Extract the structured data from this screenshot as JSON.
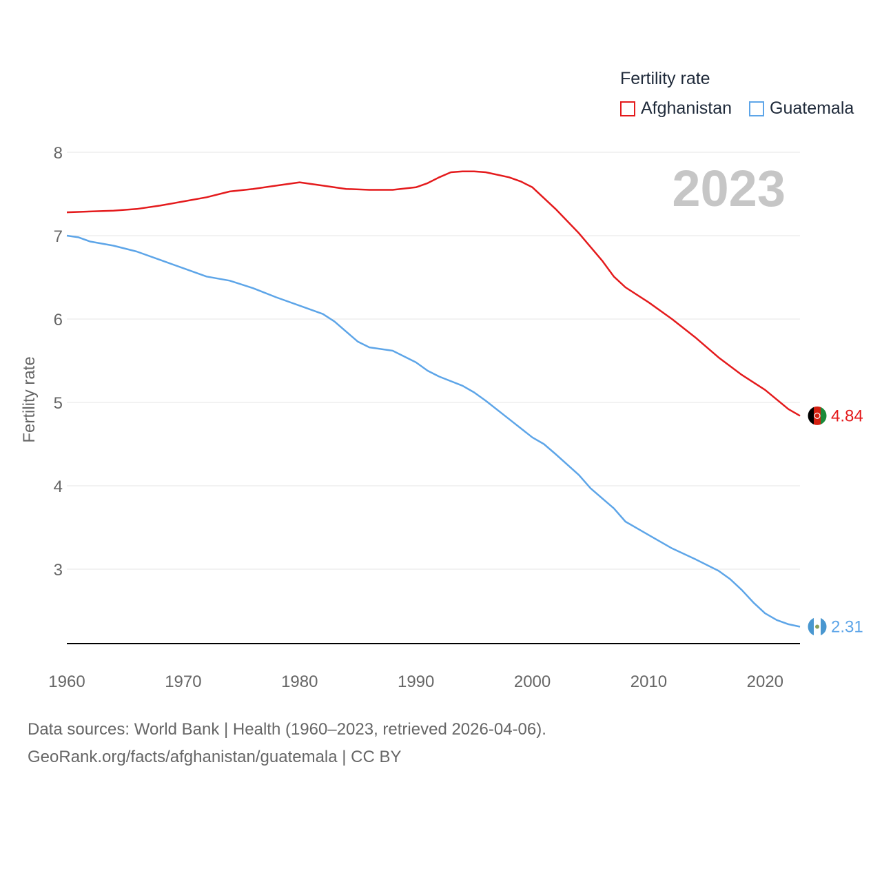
{
  "legend": {
    "title": "Fertility rate",
    "items": [
      {
        "label": "Afghanistan",
        "color": "#e41a1c"
      },
      {
        "label": "Guatemala",
        "color": "#5da5e8"
      }
    ]
  },
  "year_watermark": "2023",
  "footer": {
    "line1": "Data sources: World Bank | Health (1960–2023, retrieved 2026-04-06).",
    "line2": "GeoRank.org/facts/afghanistan/guatemala | CC BY"
  },
  "chart_data": {
    "type": "line",
    "title": "Fertility rate",
    "xlabel": "",
    "ylabel": "Fertility rate",
    "xlim": [
      1960,
      2023
    ],
    "ylim": [
      2.1,
      8.2
    ],
    "xticks": [
      1960,
      1970,
      1980,
      1990,
      2000,
      2010,
      2020
    ],
    "yticks": [
      3,
      4,
      5,
      6,
      7,
      8
    ],
    "grid": true,
    "legend_position": "top-right",
    "series": [
      {
        "name": "Afghanistan",
        "color": "#e41a1c",
        "end_label": "4.84",
        "points": [
          [
            1960,
            7.28
          ],
          [
            1962,
            7.29
          ],
          [
            1964,
            7.3
          ],
          [
            1966,
            7.32
          ],
          [
            1968,
            7.36
          ],
          [
            1970,
            7.41
          ],
          [
            1972,
            7.46
          ],
          [
            1974,
            7.53
          ],
          [
            1976,
            7.56
          ],
          [
            1978,
            7.6
          ],
          [
            1980,
            7.64
          ],
          [
            1982,
            7.6
          ],
          [
            1984,
            7.56
          ],
          [
            1986,
            7.55
          ],
          [
            1988,
            7.55
          ],
          [
            1990,
            7.58
          ],
          [
            1991,
            7.63
          ],
          [
            1992,
            7.7
          ],
          [
            1993,
            7.76
          ],
          [
            1994,
            7.77
          ],
          [
            1995,
            7.77
          ],
          [
            1996,
            7.76
          ],
          [
            1998,
            7.7
          ],
          [
            1999,
            7.65
          ],
          [
            2000,
            7.58
          ],
          [
            2002,
            7.32
          ],
          [
            2004,
            7.03
          ],
          [
            2006,
            6.7
          ],
          [
            2007,
            6.51
          ],
          [
            2008,
            6.38
          ],
          [
            2010,
            6.2
          ],
          [
            2012,
            6.0
          ],
          [
            2014,
            5.78
          ],
          [
            2016,
            5.54
          ],
          [
            2018,
            5.33
          ],
          [
            2020,
            5.15
          ],
          [
            2022,
            4.92
          ],
          [
            2023,
            4.84
          ]
        ]
      },
      {
        "name": "Guatemala",
        "color": "#5da5e8",
        "end_label": "2.31",
        "points": [
          [
            1960,
            7.0
          ],
          [
            1961,
            6.98
          ],
          [
            1962,
            6.93
          ],
          [
            1964,
            6.88
          ],
          [
            1966,
            6.81
          ],
          [
            1968,
            6.71
          ],
          [
            1970,
            6.61
          ],
          [
            1972,
            6.51
          ],
          [
            1974,
            6.46
          ],
          [
            1976,
            6.37
          ],
          [
            1978,
            6.26
          ],
          [
            1980,
            6.16
          ],
          [
            1982,
            6.06
          ],
          [
            1983,
            5.97
          ],
          [
            1984,
            5.85
          ],
          [
            1985,
            5.73
          ],
          [
            1986,
            5.66
          ],
          [
            1988,
            5.62
          ],
          [
            1990,
            5.48
          ],
          [
            1991,
            5.38
          ],
          [
            1992,
            5.31
          ],
          [
            1994,
            5.2
          ],
          [
            1995,
            5.12
          ],
          [
            1996,
            5.02
          ],
          [
            1998,
            4.8
          ],
          [
            2000,
            4.58
          ],
          [
            2001,
            4.5
          ],
          [
            2002,
            4.38
          ],
          [
            2004,
            4.13
          ],
          [
            2005,
            3.97
          ],
          [
            2006,
            3.85
          ],
          [
            2007,
            3.73
          ],
          [
            2008,
            3.57
          ],
          [
            2010,
            3.41
          ],
          [
            2012,
            3.25
          ],
          [
            2014,
            3.12
          ],
          [
            2016,
            2.98
          ],
          [
            2017,
            2.88
          ],
          [
            2018,
            2.75
          ],
          [
            2019,
            2.6
          ],
          [
            2020,
            2.47
          ],
          [
            2021,
            2.39
          ],
          [
            2022,
            2.34
          ],
          [
            2023,
            2.31
          ]
        ]
      }
    ]
  }
}
